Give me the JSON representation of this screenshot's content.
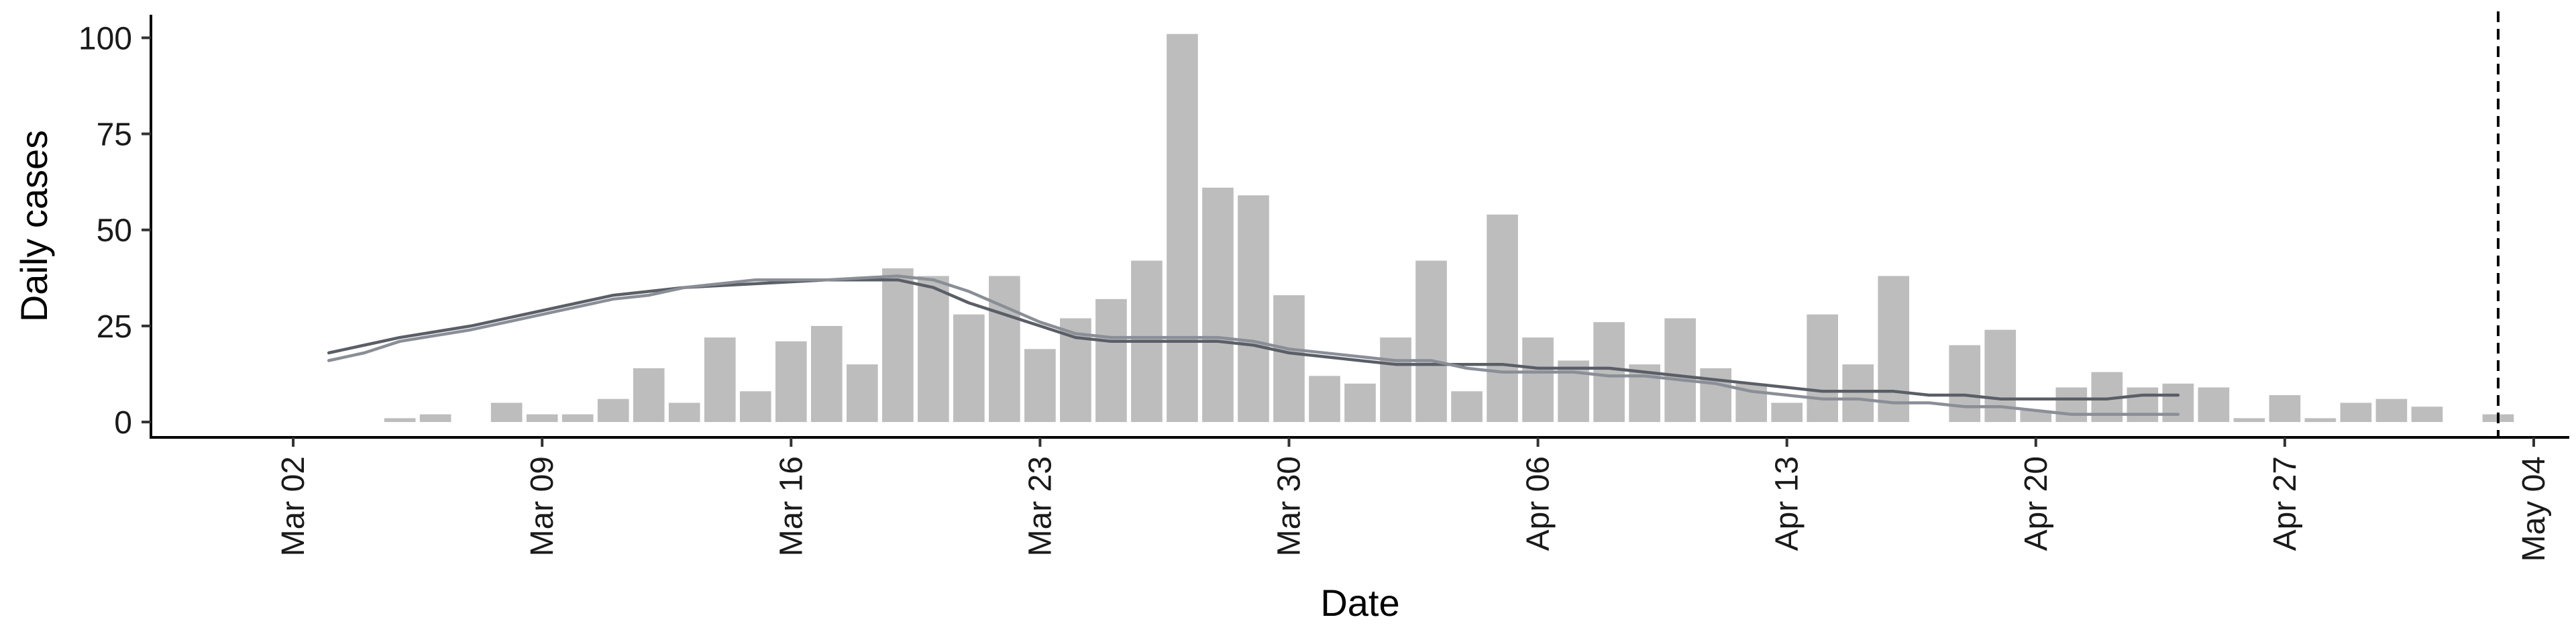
{
  "chart_data": {
    "type": "bar",
    "xlabel": "Date",
    "ylabel": "Daily cases",
    "ylim": [
      -4,
      106
    ],
    "yticks": [
      0,
      25,
      50,
      75,
      100
    ],
    "xlim": [
      "2020-02-27",
      "2020-05-05"
    ],
    "xticks": [
      {
        "date": "2020-03-02",
        "label": "Mar 02"
      },
      {
        "date": "2020-03-09",
        "label": "Mar 09"
      },
      {
        "date": "2020-03-16",
        "label": "Mar 16"
      },
      {
        "date": "2020-03-23",
        "label": "Mar 23"
      },
      {
        "date": "2020-03-30",
        "label": "Mar 30"
      },
      {
        "date": "2020-04-06",
        "label": "Apr 06"
      },
      {
        "date": "2020-04-13",
        "label": "Apr 13"
      },
      {
        "date": "2020-04-20",
        "label": "Apr 20"
      },
      {
        "date": "2020-04-27",
        "label": "Apr 27"
      },
      {
        "date": "2020-05-04",
        "label": "May 04"
      }
    ],
    "grid": false,
    "legend": "none",
    "bars": {
      "color": "#bdbdbd",
      "x": [
        "2020-03-05",
        "2020-03-06",
        "2020-03-08",
        "2020-03-09",
        "2020-03-10",
        "2020-03-11",
        "2020-03-12",
        "2020-03-13",
        "2020-03-14",
        "2020-03-15",
        "2020-03-16",
        "2020-03-17",
        "2020-03-18",
        "2020-03-19",
        "2020-03-20",
        "2020-03-21",
        "2020-03-22",
        "2020-03-23",
        "2020-03-24",
        "2020-03-25",
        "2020-03-26",
        "2020-03-27",
        "2020-03-28",
        "2020-03-29",
        "2020-03-30",
        "2020-03-31",
        "2020-04-01",
        "2020-04-02",
        "2020-04-03",
        "2020-04-04",
        "2020-04-05",
        "2020-04-06",
        "2020-04-07",
        "2020-04-08",
        "2020-04-09",
        "2020-04-10",
        "2020-04-11",
        "2020-04-12",
        "2020-04-13",
        "2020-04-14",
        "2020-04-15",
        "2020-04-16",
        "2020-04-18",
        "2020-04-19",
        "2020-04-20",
        "2020-04-21",
        "2020-04-22",
        "2020-04-23",
        "2020-04-24",
        "2020-04-25",
        "2020-04-26",
        "2020-04-27",
        "2020-04-28",
        "2020-04-29",
        "2020-04-30",
        "2020-05-01",
        "2020-05-03"
      ],
      "values": [
        1,
        2,
        5,
        2,
        2,
        6,
        14,
        5,
        22,
        8,
        21,
        25,
        15,
        40,
        38,
        28,
        38,
        19,
        27,
        32,
        42,
        101,
        61,
        59,
        33,
        12,
        10,
        22,
        42,
        8,
        54,
        22,
        16,
        26,
        15,
        27,
        14,
        10,
        5,
        28,
        15,
        38,
        20,
        24,
        3,
        9,
        13,
        9,
        10,
        9,
        1,
        7,
        1,
        5,
        6,
        4,
        2
      ]
    },
    "series": [
      {
        "color": "#5a5e66",
        "x": [
          "2020-03-03",
          "2020-03-04",
          "2020-03-05",
          "2020-03-07",
          "2020-03-09",
          "2020-03-11",
          "2020-03-12",
          "2020-03-13",
          "2020-03-15",
          "2020-03-17",
          "2020-03-19",
          "2020-03-20",
          "2020-03-21",
          "2020-03-22",
          "2020-03-23",
          "2020-03-24",
          "2020-03-25",
          "2020-03-26",
          "2020-03-27",
          "2020-03-28",
          "2020-03-29",
          "2020-03-30",
          "2020-04-01",
          "2020-04-02",
          "2020-04-03",
          "2020-04-04",
          "2020-04-05",
          "2020-04-06",
          "2020-04-07",
          "2020-04-08",
          "2020-04-09",
          "2020-04-10",
          "2020-04-11",
          "2020-04-12",
          "2020-04-13",
          "2020-04-14",
          "2020-04-15",
          "2020-04-16",
          "2020-04-17",
          "2020-04-18",
          "2020-04-19",
          "2020-04-20",
          "2020-04-21",
          "2020-04-22",
          "2020-04-23",
          "2020-04-24"
        ],
        "values": [
          18,
          20,
          22,
          25,
          29,
          33,
          34,
          35,
          36,
          37,
          37,
          35,
          31,
          28,
          25,
          22,
          21,
          21,
          21,
          21,
          20,
          18,
          16,
          15,
          15,
          15,
          15,
          14,
          14,
          14,
          13,
          12,
          11,
          10,
          9,
          8,
          8,
          8,
          7,
          7,
          6,
          6,
          6,
          6,
          7,
          7
        ]
      },
      {
        "color": "#8a8e96",
        "x": [
          "2020-03-03",
          "2020-03-04",
          "2020-03-05",
          "2020-03-07",
          "2020-03-09",
          "2020-03-11",
          "2020-03-12",
          "2020-03-13",
          "2020-03-15",
          "2020-03-17",
          "2020-03-19",
          "2020-03-20",
          "2020-03-21",
          "2020-03-22",
          "2020-03-23",
          "2020-03-24",
          "2020-03-25",
          "2020-03-26",
          "2020-03-27",
          "2020-03-28",
          "2020-03-29",
          "2020-03-30",
          "2020-04-01",
          "2020-04-02",
          "2020-04-03",
          "2020-04-04",
          "2020-04-05",
          "2020-04-06",
          "2020-04-07",
          "2020-04-08",
          "2020-04-09",
          "2020-04-10",
          "2020-04-11",
          "2020-04-12",
          "2020-04-13",
          "2020-04-14",
          "2020-04-15",
          "2020-04-16",
          "2020-04-17",
          "2020-04-18",
          "2020-04-19",
          "2020-04-20",
          "2020-04-21",
          "2020-04-22",
          "2020-04-23",
          "2020-04-24"
        ],
        "values": [
          16,
          18,
          21,
          24,
          28,
          32,
          33,
          35,
          37,
          37,
          38,
          37,
          34,
          30,
          26,
          23,
          22,
          22,
          22,
          22,
          21,
          19,
          17,
          16,
          16,
          14,
          13,
          13,
          13,
          12,
          12,
          11,
          10,
          8,
          7,
          6,
          6,
          5,
          5,
          4,
          4,
          3,
          2,
          2,
          2,
          2
        ]
      }
    ],
    "vline": {
      "x": "2020-05-03",
      "style": "dashed"
    }
  }
}
